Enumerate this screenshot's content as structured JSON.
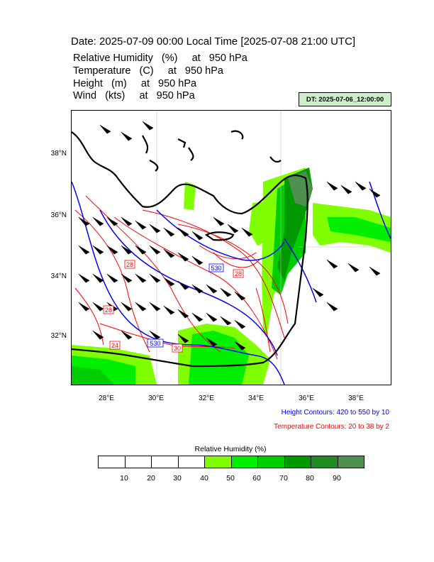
{
  "header": {
    "date_line": "Date: 2025-07-09  00:00 Local Time [2025-07-08  21:00 UTC]",
    "fields": [
      "Relative Humidity   (%)     at   950 hPa",
      "Temperature   (C)     at   950 hPa",
      "Height   (m)     at   950 hPa",
      "Wind   (kts)     at   950 hPa"
    ],
    "dt_badge": "DT: 2025-07-06_12:00:00"
  },
  "map": {
    "lat_labels": [
      "38°N",
      "36°N",
      "34°N",
      "32°N"
    ],
    "lon_labels": [
      "28°E",
      "30°E",
      "32°E",
      "34°E",
      "36°E",
      "38°E"
    ],
    "height_contour_labels": [
      "530",
      "530"
    ],
    "temperature_contour_labels": [
      "28",
      "28",
      "28",
      "24",
      "30"
    ],
    "colors": {
      "coastline": "#000000",
      "height_contours": "#0000ff",
      "temperature_contours": "#ff0000",
      "wind_barbs": "#000000"
    }
  },
  "notes": {
    "height": "Height Contours: 420 to 550 by 10",
    "temperature": "Temperature Contours: 20 to 38 by 2"
  },
  "legend": {
    "title": "Relative Humidity  (%)",
    "ticks": [
      "10",
      "20",
      "30",
      "40",
      "50",
      "60",
      "70",
      "80",
      "90"
    ],
    "colors": [
      "#ffffff",
      "#ffffff",
      "#ffffff",
      "#ffffff",
      "#7fff00",
      "#00ee00",
      "#00cd00",
      "#009a00",
      "#238b23",
      "#4f8f4f"
    ]
  }
}
